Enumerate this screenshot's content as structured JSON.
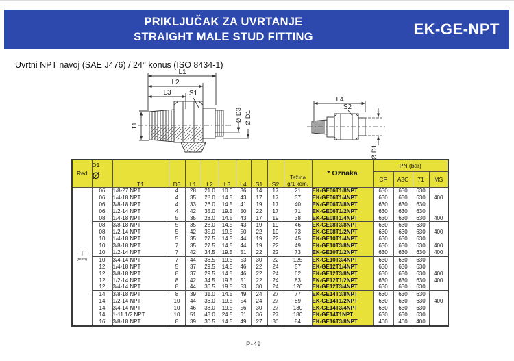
{
  "header": {
    "title_line1": "PRIKLJUČAK ZA UVRTANJE",
    "title_line2": "STRAIGHT MALE STUD FITTING",
    "product_code": "EK-GE-NPT"
  },
  "subtitle": "Uvrtni NPT navoj (SAE J476) / 24° konus (ISO 8434-1)",
  "colors": {
    "accent_blue": "#2d49ae",
    "table_yellow": "#e8e139"
  },
  "drawing_left": {
    "l1": "L1",
    "l2": "L2",
    "l3": "L3",
    "s1": "S1",
    "t1": "T1",
    "d3": "Ø D3",
    "d1": "Ø D1"
  },
  "drawing_right": {
    "l4": "L4",
    "s2": "S2",
    "d1": "Ø D1"
  },
  "table": {
    "head": {
      "red": "Red",
      "d1": "D1",
      "diameter": "Ø",
      "t1": "T1",
      "d3": "D3",
      "l1": "L1",
      "l2": "L2",
      "l3": "L3",
      "l4": "L4",
      "s1": "S1",
      "s2": "S2",
      "tezina_line1": "Težina",
      "tezina_line2": "g/1 kom.",
      "oznaka": "* Oznaka",
      "pn": "PN (bar)",
      "cf": "CF",
      "a3c": "A3C",
      "col71": "71",
      "ms": "MS"
    },
    "series": {
      "code": "T",
      "note": "(teški)"
    },
    "row_keys": [
      "d1",
      "t1",
      "d3",
      "l1",
      "l2",
      "l3",
      "l4",
      "s1",
      "s2",
      "tezina",
      "oznaka",
      "cf",
      "a3c",
      "pn71",
      "ms"
    ],
    "group_starts": [
      0,
      5,
      10,
      15
    ],
    "rows": [
      {
        "d1": "06",
        "t1": "1/8-27 NPT",
        "d3": "4",
        "l1": "28",
        "l2": "21.0",
        "l3": "10.0",
        "l4": "36",
        "s1": "14",
        "s2": "17",
        "tezina": "21",
        "oznaka": "EK-GE06T1/8NPT",
        "cf": "630",
        "a3c": "630",
        "pn71": "630",
        "ms": ""
      },
      {
        "d1": "06",
        "t1": "1/4-18 NPT",
        "d3": "4",
        "l1": "35",
        "l2": "28.0",
        "l3": "14.5",
        "l4": "43",
        "s1": "17",
        "s2": "17",
        "tezina": "37",
        "oznaka": "EK-GE06T1/4NPT",
        "cf": "630",
        "a3c": "630",
        "pn71": "630",
        "ms": "400"
      },
      {
        "d1": "06",
        "t1": "3/8-18 NPT",
        "d3": "4",
        "l1": "33",
        "l2": "26.0",
        "l3": "14.5",
        "l4": "41",
        "s1": "19",
        "s2": "17",
        "tezina": "40",
        "oznaka": "EK-GE06T3/8NPT",
        "cf": "630",
        "a3c": "630",
        "pn71": "630",
        "ms": ""
      },
      {
        "d1": "06",
        "t1": "1/2-14 NPT",
        "d3": "4",
        "l1": "42",
        "l2": "35.0",
        "l3": "19.5",
        "l4": "50",
        "s1": "22",
        "s2": "17",
        "tezina": "71",
        "oznaka": "EK-GE06T1/2NPT",
        "cf": "630",
        "a3c": "630",
        "pn71": "630",
        "ms": ""
      },
      {
        "d1": "08",
        "t1": "1/4-18 NPT",
        "d3": "5",
        "l1": "35",
        "l2": "28.0",
        "l3": "14.5",
        "l4": "43",
        "s1": "17",
        "s2": "19",
        "tezina": "38",
        "oznaka": "EK-GE08T1/4NPT",
        "cf": "630",
        "a3c": "630",
        "pn71": "630",
        "ms": "400"
      },
      {
        "d1": "08",
        "t1": "3/8-18 NPT",
        "d3": "5",
        "l1": "35",
        "l2": "28.0",
        "l3": "14.5",
        "l4": "43",
        "s1": "19",
        "s2": "19",
        "tezina": "46",
        "oznaka": "EK-GE08T3/8NPT",
        "cf": "630",
        "a3c": "630",
        "pn71": "630",
        "ms": ""
      },
      {
        "d1": "08",
        "t1": "1/2-14 NPT",
        "d3": "5",
        "l1": "42",
        "l2": "35.0",
        "l3": "19.5",
        "l4": "50",
        "s1": "22",
        "s2": "19",
        "tezina": "73",
        "oznaka": "EK-GE08T1/2NPT",
        "cf": "630",
        "a3c": "630",
        "pn71": "630",
        "ms": "400"
      },
      {
        "d1": "10",
        "t1": "1/4-18 NPT",
        "d3": "5",
        "l1": "35",
        "l2": "27.5",
        "l3": "14.5",
        "l4": "44",
        "s1": "19",
        "s2": "22",
        "tezina": "45",
        "oznaka": "EK-GE10T1/4NPT",
        "cf": "630",
        "a3c": "630",
        "pn71": "630",
        "ms": ""
      },
      {
        "d1": "10",
        "t1": "3/8-18 NPT",
        "d3": "7",
        "l1": "35",
        "l2": "27.5",
        "l3": "14.5",
        "l4": "44",
        "s1": "19",
        "s2": "22",
        "tezina": "49",
        "oznaka": "EK-GE10T3/8NPT",
        "cf": "630",
        "a3c": "630",
        "pn71": "630",
        "ms": "400"
      },
      {
        "d1": "10",
        "t1": "1/2-14 NPT",
        "d3": "7",
        "l1": "42",
        "l2": "34.5",
        "l3": "19.5",
        "l4": "51",
        "s1": "22",
        "s2": "22",
        "tezina": "73",
        "oznaka": "EK-GE10T1/2NPT",
        "cf": "630",
        "a3c": "630",
        "pn71": "630",
        "ms": "400"
      },
      {
        "d1": "10",
        "t1": "3/4-14 NPT",
        "d3": "7",
        "l1": "44",
        "l2": "36.5",
        "l3": "19.5",
        "l4": "53",
        "s1": "30",
        "s2": "22",
        "tezina": "125",
        "oznaka": "EK-GE10T3/4NPT",
        "cf": "630",
        "a3c": "630",
        "pn71": "630",
        "ms": ""
      },
      {
        "d1": "12",
        "t1": "1/4-18 NPT",
        "d3": "5",
        "l1": "37",
        "l2": "29.5",
        "l3": "14.5",
        "l4": "46",
        "s1": "22",
        "s2": "24",
        "tezina": "57",
        "oznaka": "EK-GE12T1/4NPT",
        "cf": "630",
        "a3c": "630",
        "pn71": "630",
        "ms": ""
      },
      {
        "d1": "12",
        "t1": "3/8-18 NPT",
        "d3": "8",
        "l1": "37",
        "l2": "29.5",
        "l3": "14.5",
        "l4": "46",
        "s1": "22",
        "s2": "24",
        "tezina": "62",
        "oznaka": "EK-GE12T3/8NPT",
        "cf": "630",
        "a3c": "630",
        "pn71": "630",
        "ms": "400"
      },
      {
        "d1": "12",
        "t1": "1/2-14 NPT",
        "d3": "8",
        "l1": "42",
        "l2": "34.5",
        "l3": "19.5",
        "l4": "51",
        "s1": "22",
        "s2": "24",
        "tezina": "83",
        "oznaka": "EK-GE12T1/2NPT",
        "cf": "630",
        "a3c": "630",
        "pn71": "630",
        "ms": "400"
      },
      {
        "d1": "12",
        "t1": "3/4-14 NPT",
        "d3": "8",
        "l1": "44",
        "l2": "36.5",
        "l3": "19.5",
        "l4": "53",
        "s1": "30",
        "s2": "24",
        "tezina": "126",
        "oznaka": "EK-GE12T3/4NPT",
        "cf": "630",
        "a3c": "630",
        "pn71": "630",
        "ms": ""
      },
      {
        "d1": "14",
        "t1": "3/8-18 NPT",
        "d3": "8",
        "l1": "39",
        "l2": "31.0",
        "l3": "14.5",
        "l4": "49",
        "s1": "24",
        "s2": "27",
        "tezina": "77",
        "oznaka": "EK-GE14T3/8NPT",
        "cf": "630",
        "a3c": "630",
        "pn71": "630",
        "ms": ""
      },
      {
        "d1": "14",
        "t1": "1/2-14 NPT",
        "d3": "10",
        "l1": "44",
        "l2": "36.0",
        "l3": "19.5",
        "l4": "54",
        "s1": "24",
        "s2": "27",
        "tezina": "89",
        "oznaka": "EK-GE14T1/2NPT",
        "cf": "630",
        "a3c": "630",
        "pn71": "630",
        "ms": "400"
      },
      {
        "d1": "14",
        "t1": "3/4-14 NPT",
        "d3": "10",
        "l1": "46",
        "l2": "38.0",
        "l3": "19.5",
        "l4": "56",
        "s1": "30",
        "s2": "27",
        "tezina": "130",
        "oznaka": "EK-GE14T3/4NPT",
        "cf": "630",
        "a3c": "630",
        "pn71": "630",
        "ms": ""
      },
      {
        "d1": "14",
        "t1": "1-11 1/2 NPT",
        "d3": "10",
        "l1": "51",
        "l2": "43.0",
        "l3": "24.5",
        "l4": "61",
        "s1": "36",
        "s2": "27",
        "tezina": "180",
        "oznaka": "EK-GE14T1NPT",
        "cf": "630",
        "a3c": "630",
        "pn71": "630",
        "ms": ""
      },
      {
        "d1": "16",
        "t1": "3/8-18 NPT",
        "d3": "8",
        "l1": "39",
        "l2": "30.5",
        "l3": "14.5",
        "l4": "49",
        "s1": "27",
        "s2": "30",
        "tezina": "84",
        "oznaka": "EK-GE16T3/8NPT",
        "cf": "400",
        "a3c": "400",
        "pn71": "400",
        "ms": ""
      }
    ]
  },
  "page": {
    "footer_page_number": "P-49"
  }
}
